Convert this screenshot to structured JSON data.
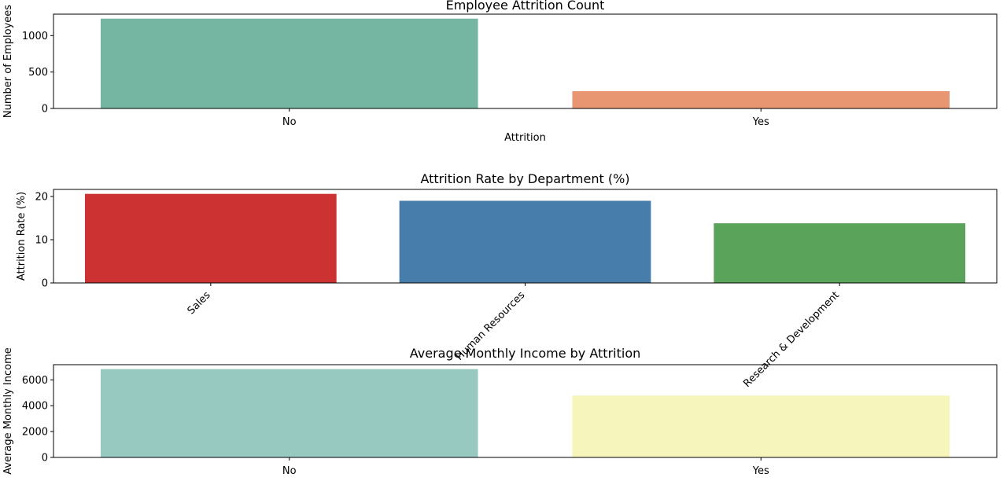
{
  "chart_data": [
    {
      "type": "bar",
      "title": "Employee Attrition Count",
      "xlabel": "Attrition",
      "ylabel": "Number of Employees",
      "categories": [
        "No",
        "Yes"
      ],
      "values": [
        1233,
        237
      ],
      "colors": [
        "#74b6a1",
        "#e89572"
      ],
      "ylim": [
        0,
        1294.65
      ],
      "yticks": [
        0,
        500,
        1000
      ],
      "ytick_labels": [
        "0",
        "500",
        "1000"
      ],
      "xtick_rotation": 0,
      "grid": false
    },
    {
      "type": "bar",
      "title": "Attrition Rate by Department (%)",
      "xlabel": "",
      "ylabel": "Attrition Rate (%)",
      "categories": [
        "Sales",
        "Human Resources",
        "Research & Development"
      ],
      "values": [
        20.6,
        19.0,
        13.8
      ],
      "colors": [
        "#cd3233",
        "#477dab",
        "#5aa35a"
      ],
      "ylim": [
        0,
        21.63
      ],
      "yticks": [
        0,
        10,
        20
      ],
      "ytick_labels": [
        "0",
        "10",
        "20"
      ],
      "xtick_rotation": -45,
      "grid": false
    },
    {
      "type": "bar",
      "title": "Average Monthly Income by Attrition",
      "xlabel": "",
      "ylabel": "Average Monthly Income",
      "categories": [
        "No",
        "Yes"
      ],
      "values": [
        6833,
        4787
      ],
      "colors": [
        "#97c9c1",
        "#f6f5bc"
      ],
      "ylim": [
        0,
        7174.65
      ],
      "yticks": [
        0,
        2000,
        4000,
        6000
      ],
      "ytick_labels": [
        "0",
        "2000",
        "4000",
        "6000"
      ],
      "xtick_rotation": 0,
      "grid": false
    }
  ]
}
